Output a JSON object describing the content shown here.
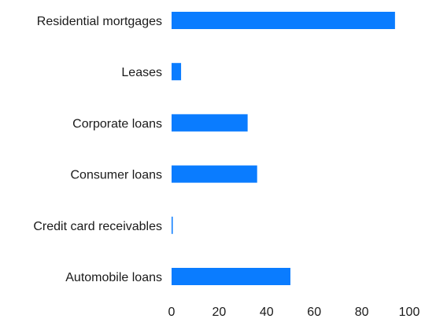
{
  "chart_data": {
    "type": "bar",
    "orientation": "horizontal",
    "categories": [
      "Residential mortgages",
      "Leases",
      "Corporate loans",
      "Consumer loans",
      "Credit card receivables",
      "Automobile loans"
    ],
    "values": [
      94,
      4,
      32,
      36,
      0.5,
      50
    ],
    "xlim": [
      0,
      100
    ],
    "xticks": [
      0,
      20,
      40,
      60,
      80,
      100
    ],
    "title": "",
    "xlabel": "",
    "ylabel": "",
    "grid": false,
    "legend": "none",
    "bar_color": "#0a7cff"
  }
}
